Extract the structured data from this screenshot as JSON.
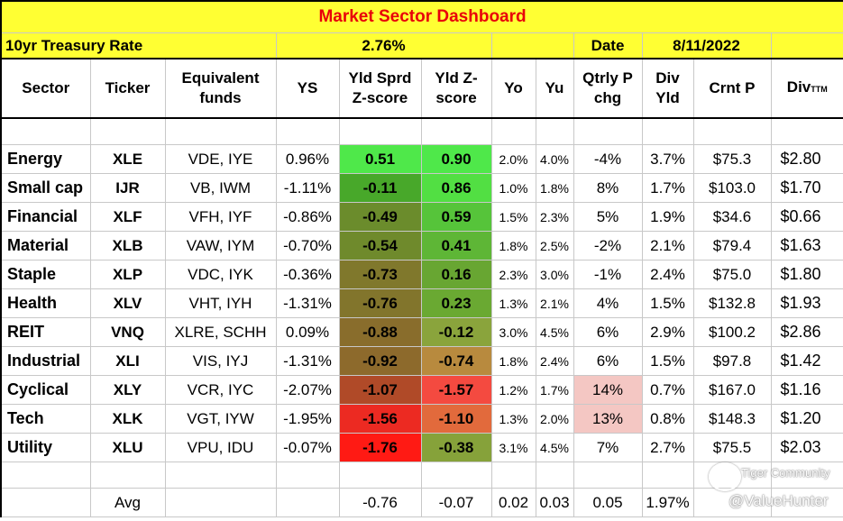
{
  "title": "Market Sector Dashboard",
  "info": {
    "rate_label": "10yr Treasury Rate",
    "rate_value": "2.76%",
    "date_label": "Date",
    "date_value": "8/11/2022"
  },
  "columns": [
    "Sector",
    "Ticker",
    "Equivalent funds",
    "YS",
    "Yld Sprd Z-score",
    "Yld Z-score",
    "Yo",
    "Yu",
    "Qtrly P chg",
    "Div Yld",
    "Crnt P",
    "Div",
    "TTM"
  ],
  "rows": [
    {
      "sector": "Energy",
      "ticker": "XLE",
      "funds": "VDE, IYE",
      "ys": "0.96%",
      "z1": "0.51",
      "z2": "0.90",
      "yo": "2.0%",
      "yu": "4.0%",
      "qchg": "-4%",
      "divyld": "3.7%",
      "price": "$75.3",
      "div": "$2.80"
    },
    {
      "sector": "Small cap",
      "ticker": "IJR",
      "funds": "VB, IWM",
      "ys": "-1.11%",
      "z1": "-0.11",
      "z2": "0.86",
      "yo": "1.0%",
      "yu": "1.8%",
      "qchg": "8%",
      "divyld": "1.7%",
      "price": "$103.0",
      "div": "$1.70"
    },
    {
      "sector": "Financial",
      "ticker": "XLF",
      "funds": "VFH, IYF",
      "ys": "-0.86%",
      "z1": "-0.49",
      "z2": "0.59",
      "yo": "1.5%",
      "yu": "2.3%",
      "qchg": "5%",
      "divyld": "1.9%",
      "price": "$34.6",
      "div": "$0.66"
    },
    {
      "sector": "Material",
      "ticker": "XLB",
      "funds": "VAW, IYM",
      "ys": "-0.70%",
      "z1": "-0.54",
      "z2": "0.41",
      "yo": "1.8%",
      "yu": "2.5%",
      "qchg": "-2%",
      "divyld": "2.1%",
      "price": "$79.4",
      "div": "$1.63"
    },
    {
      "sector": "Staple",
      "ticker": "XLP",
      "funds": "VDC, IYK",
      "ys": "-0.36%",
      "z1": "-0.73",
      "z2": "0.16",
      "yo": "2.3%",
      "yu": "3.0%",
      "qchg": "-1%",
      "divyld": "2.4%",
      "price": "$75.0",
      "div": "$1.80"
    },
    {
      "sector": "Health",
      "ticker": "XLV",
      "funds": "VHT, IYH",
      "ys": "-1.31%",
      "z1": "-0.76",
      "z2": "0.23",
      "yo": "1.3%",
      "yu": "2.1%",
      "qchg": "4%",
      "divyld": "1.5%",
      "price": "$132.8",
      "div": "$1.93"
    },
    {
      "sector": "REIT",
      "ticker": "VNQ",
      "funds": "XLRE, SCHH",
      "ys": "0.09%",
      "z1": "-0.88",
      "z2": "-0.12",
      "yo": "3.0%",
      "yu": "4.5%",
      "qchg": "6%",
      "divyld": "2.9%",
      "price": "$100.2",
      "div": "$2.86"
    },
    {
      "sector": "Industrial",
      "ticker": "XLI",
      "funds": "VIS, IYJ",
      "ys": "-1.31%",
      "z1": "-0.92",
      "z2": "-0.74",
      "yo": "1.8%",
      "yu": "2.4%",
      "qchg": "6%",
      "divyld": "1.5%",
      "price": "$97.8",
      "div": "$1.42"
    },
    {
      "sector": "Cyclical",
      "ticker": "XLY",
      "funds": "VCR, IYC",
      "ys": "-2.07%",
      "z1": "-1.07",
      "z2": "-1.57",
      "yo": "1.2%",
      "yu": "1.7%",
      "qchg": "14%",
      "divyld": "0.7%",
      "price": "$167.0",
      "div": "$1.16"
    },
    {
      "sector": "Tech",
      "ticker": "XLK",
      "funds": "VGT, IYW",
      "ys": "-1.95%",
      "z1": "-1.56",
      "z2": "-1.10",
      "yo": "1.3%",
      "yu": "2.0%",
      "qchg": "13%",
      "divyld": "0.8%",
      "price": "$148.3",
      "div": "$1.20"
    },
    {
      "sector": "Utility",
      "ticker": "XLU",
      "funds": "VPU, IDU",
      "ys": "-0.07%",
      "z1": "-1.76",
      "z2": "-0.38",
      "yo": "3.1%",
      "yu": "4.5%",
      "qchg": "7%",
      "divyld": "2.7%",
      "price": "$75.5",
      "div": "$2.03"
    }
  ],
  "row_colors": [
    {
      "z1": "#4fe84a",
      "z2": "#4fe84a"
    },
    {
      "z1": "#48a82a",
      "z2": "#52df43"
    },
    {
      "z1": "#6b8c2c",
      "z2": "#56c43a"
    },
    {
      "z1": "#6f8a2c",
      "z2": "#5eb636"
    },
    {
      "z1": "#80782c",
      "z2": "#68a632"
    },
    {
      "z1": "#82752c",
      "z2": "#6aa932"
    },
    {
      "z1": "#896d2c",
      "z2": "#8aa43c"
    },
    {
      "z1": "#8d6a2c",
      "z2": "#b88a3e"
    },
    {
      "z1": "#b04a28",
      "z2": "#f44a40"
    },
    {
      "z1": "#ec2a22",
      "z2": "#e26a3c"
    },
    {
      "z1": "#ff1a14",
      "z2": "#86a23a"
    }
  ],
  "qchg_highlight": [
    "14%",
    "13%"
  ],
  "avg": {
    "label": "Avg",
    "z1": "-0.76",
    "z2": "-0.07",
    "yo": "0.02",
    "yu": "0.03",
    "qchg": "0.05",
    "divyld": "1.97%"
  },
  "watermark": {
    "brand": "Tiger Community",
    "user": "@ValueHunter"
  }
}
